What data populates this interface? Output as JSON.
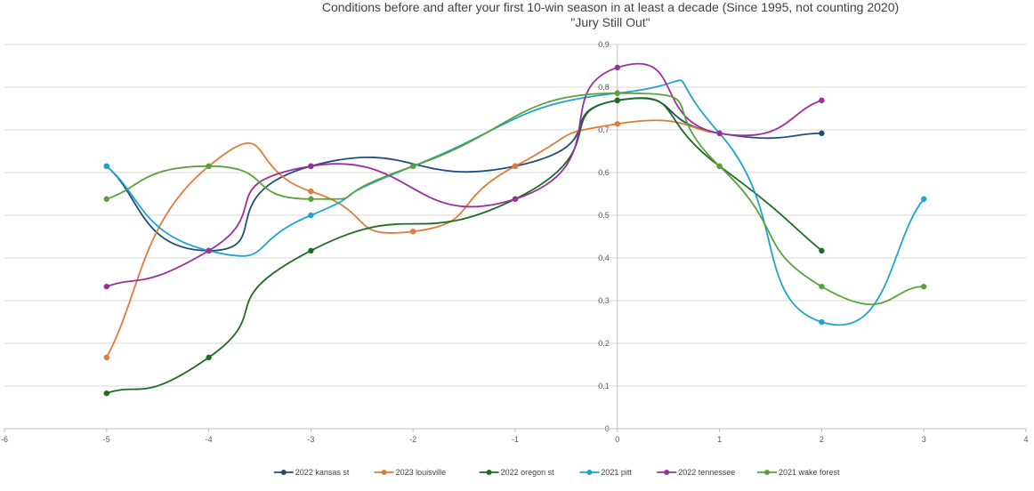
{
  "chart_data": {
    "type": "scatter",
    "title": "Conditions before and after your first 10-win season in at least a decade (Since 1995, not counting 2020)",
    "subtitle": "\"Jury Still Out\"",
    "xlabel": "",
    "ylabel": "",
    "xlim": [
      -6,
      4
    ],
    "ylim": [
      0,
      0.9
    ],
    "x_ticks": [
      "-6",
      "-5",
      "-4",
      "-3",
      "-2",
      "-1",
      "0",
      "1",
      "2",
      "3",
      "4"
    ],
    "y_ticks": [
      "0",
      "0.1",
      "0.2",
      "0.3",
      "0.4",
      "0.5",
      "0.6",
      "0.7",
      "0.8",
      "0.9"
    ],
    "grid": "horizontal",
    "smooth_lines": true,
    "legend_position": "bottom",
    "series": [
      {
        "name": "2022 kansas st",
        "color": "#1f4e79",
        "points": [
          [
            -5,
            0.615
          ],
          [
            -4,
            0.417
          ],
          [
            -3,
            0.615
          ],
          [
            -1,
            0.615
          ],
          [
            0,
            0.769
          ],
          [
            1,
            0.692
          ],
          [
            2,
            0.692
          ]
        ]
      },
      {
        "name": "2023 louisville",
        "color": "#e07b39",
        "points": [
          [
            -5,
            0.167
          ],
          [
            -4,
            0.615
          ],
          [
            -3,
            0.556
          ],
          [
            -2,
            0.462
          ],
          [
            -1,
            0.615
          ],
          [
            0,
            0.714
          ],
          [
            1,
            0.692
          ]
        ]
      },
      {
        "name": "2022 oregon st",
        "color": "#1e6b22",
        "points": [
          [
            -5,
            0.083
          ],
          [
            -4,
            0.167
          ],
          [
            -3,
            0.417
          ],
          [
            -1,
            0.538
          ],
          [
            0,
            0.769
          ],
          [
            1,
            0.615
          ],
          [
            2,
            0.417
          ]
        ]
      },
      {
        "name": "2021 pitt",
        "color": "#1fa4d0",
        "points": [
          [
            -5,
            0.615
          ],
          [
            -4,
            0.417
          ],
          [
            -3,
            0.5
          ],
          [
            -2,
            0.615
          ],
          [
            0,
            0.786
          ],
          [
            1,
            0.692
          ],
          [
            2,
            0.25
          ],
          [
            3,
            0.538
          ]
        ]
      },
      {
        "name": "2022 tennessee",
        "color": "#9b2f9e",
        "points": [
          [
            -5,
            0.333
          ],
          [
            -4,
            0.417
          ],
          [
            -3,
            0.615
          ],
          [
            -1,
            0.538
          ],
          [
            0,
            0.846
          ],
          [
            1,
            0.692
          ],
          [
            2,
            0.769
          ]
        ]
      },
      {
        "name": "2021 wake forest",
        "color": "#5aa33a",
        "points": [
          [
            -5,
            0.538
          ],
          [
            -4,
            0.615
          ],
          [
            -3,
            0.538
          ],
          [
            -2,
            0.615
          ],
          [
            0,
            0.786
          ],
          [
            1,
            0.615
          ],
          [
            2,
            0.333
          ],
          [
            3,
            0.333
          ]
        ]
      }
    ]
  }
}
